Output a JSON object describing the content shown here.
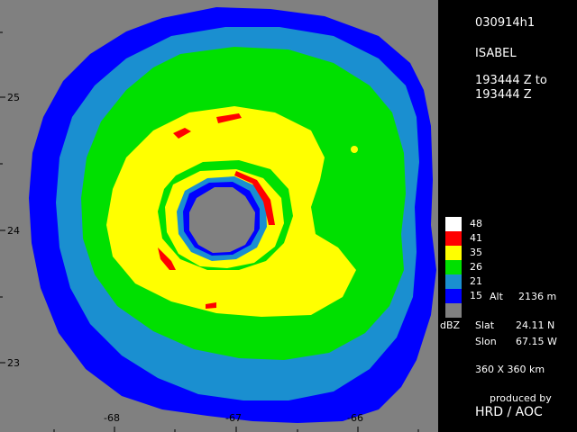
{
  "header": {
    "flight_id": "030914h1",
    "storm_name": "ISABEL",
    "time_line_1": "193444 Z to",
    "time_line_2": "193444 Z"
  },
  "legend": {
    "unit": "dBZ",
    "levels": [
      {
        "value": "48",
        "color": "#ffffff"
      },
      {
        "value": "41",
        "color": "#ff0000"
      },
      {
        "value": "35",
        "color": "#ffff00"
      },
      {
        "value": "26",
        "color": "#00e000"
      },
      {
        "value": "21",
        "color": "#1a8fd0"
      },
      {
        "value": "15",
        "color": "#0000ff"
      }
    ],
    "no_data_color": "#808080",
    "altitude_label": "Alt",
    "altitude_value": "2136 m"
  },
  "position": {
    "lat_label": "Slat",
    "lat_value": "24.11 N",
    "lon_label": "Slon",
    "lon_value": "67.15 W"
  },
  "domain_size": "360 X 360 km",
  "credits": {
    "produced_by": "produced by",
    "org": "HRD / AOC"
  },
  "axes": {
    "lat_ticks": [
      "25",
      "24",
      "23"
    ],
    "lon_ticks": [
      "-68",
      "-67",
      "-66"
    ]
  },
  "colors": {
    "background": "#808080",
    "panel": "#000000"
  }
}
